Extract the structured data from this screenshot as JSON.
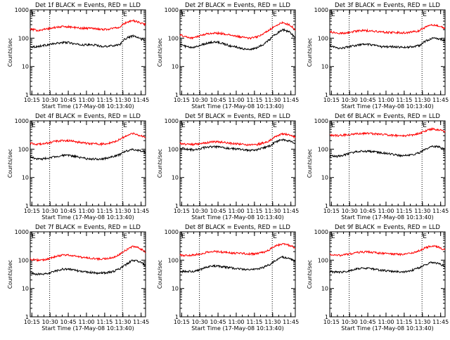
{
  "figure": {
    "xlabel": "Start Time (17-May-08 10:13:40)",
    "ylabel": "Counts/sec",
    "x_ticks": [
      "10:15",
      "10:30",
      "10:45",
      "11:00",
      "11:15",
      "11:30",
      "11:45"
    ],
    "y_ticks": [
      "1",
      "10",
      "100",
      "1000"
    ],
    "colors": {
      "events": "#000000",
      "lld": "#ff0000"
    }
  },
  "chart_data": [
    {
      "type": "line",
      "title": "Det 1f BLACK = Events, RED = LLD",
      "xlabel": "Start Time (17-May-08 10:13:40)",
      "ylabel": "Counts/sec",
      "ylim": [
        1,
        1000
      ],
      "yscale": "log",
      "x_unit": "minutes after 10:13:40",
      "series": [
        {
          "name": "Events",
          "color": "#000000",
          "values": [
            50,
            50,
            55,
            60,
            65,
            70,
            70,
            62,
            58,
            58,
            58,
            52,
            52,
            55,
            60,
            100,
            120,
            100,
            80
          ]
        },
        {
          "name": "LLD",
          "color": "#ff0000",
          "values": [
            210,
            190,
            200,
            220,
            240,
            255,
            255,
            235,
            225,
            225,
            225,
            205,
            205,
            225,
            245,
            360,
            420,
            360,
            300
          ]
        }
      ],
      "vlines": [
        {
          "x": 16,
          "label": ""
        },
        {
          "x": 76,
          "label": "E"
        }
      ],
      "corner_label": "E"
    },
    {
      "type": "line",
      "title": "Det 2f BLACK = Events, RED = LLD",
      "xlabel": "Start Time (17-May-08 10:13:40)",
      "ylabel": "Counts/sec",
      "ylim": [
        1,
        1000
      ],
      "yscale": "log",
      "x_unit": "minutes after 10:13:40",
      "series": [
        {
          "name": "Events",
          "color": "#000000",
          "values": [
            60,
            50,
            45,
            55,
            65,
            72,
            72,
            62,
            52,
            48,
            42,
            40,
            45,
            60,
            90,
            140,
            200,
            170,
            100
          ]
        },
        {
          "name": "LLD",
          "color": "#ff0000",
          "values": [
            130,
            110,
            100,
            120,
            140,
            150,
            150,
            140,
            125,
            115,
            105,
            100,
            110,
            140,
            200,
            280,
            350,
            300,
            200
          ]
        }
      ],
      "vlines": [
        {
          "x": 16,
          "label": ""
        },
        {
          "x": 76,
          "label": "E"
        }
      ],
      "corner_label": "E"
    },
    {
      "type": "line",
      "title": "Det 3f BLACK = Events, RED = LLD",
      "xlabel": "Start Time (17-May-08 10:13:40)",
      "ylabel": "Counts/sec",
      "ylim": [
        1,
        1000
      ],
      "yscale": "log",
      "x_unit": "minutes after 10:13:40",
      "series": [
        {
          "name": "Events",
          "color": "#000000",
          "values": [
            55,
            45,
            45,
            50,
            55,
            60,
            60,
            55,
            50,
            50,
            50,
            48,
            48,
            50,
            55,
            80,
            100,
            95,
            80
          ]
        },
        {
          "name": "LLD",
          "color": "#ff0000",
          "values": [
            170,
            150,
            150,
            160,
            175,
            185,
            185,
            175,
            165,
            160,
            160,
            155,
            155,
            165,
            185,
            250,
            290,
            270,
            230
          ]
        }
      ],
      "vlines": [
        {
          "x": 16,
          "label": ""
        },
        {
          "x": 76,
          "label": "E"
        }
      ],
      "corner_label": "E"
    },
    {
      "type": "line",
      "title": "Det 4f BLACK = Events, RED = LLD",
      "xlabel": "Start Time (17-May-08 10:13:40)",
      "ylabel": "Counts/sec",
      "ylim": [
        1,
        1000
      ],
      "yscale": "log",
      "x_unit": "minutes after 10:13:40",
      "series": [
        {
          "name": "Events",
          "color": "#000000",
          "values": [
            55,
            45,
            45,
            50,
            55,
            60,
            60,
            55,
            50,
            45,
            45,
            45,
            48,
            55,
            65,
            85,
            100,
            90,
            80
          ]
        },
        {
          "name": "LLD",
          "color": "#ff0000",
          "values": [
            160,
            150,
            150,
            170,
            190,
            200,
            200,
            185,
            170,
            160,
            155,
            150,
            160,
            180,
            220,
            300,
            360,
            310,
            250
          ]
        }
      ],
      "vlines": [
        {
          "x": 16,
          "label": ""
        },
        {
          "x": 76,
          "label": "E"
        }
      ],
      "corner_label": "E"
    },
    {
      "type": "line",
      "title": "Det 5f BLACK = Events, RED = LLD",
      "xlabel": "Start Time (17-May-08 10:13:40)",
      "ylabel": "Counts/sec",
      "ylim": [
        1,
        1000
      ],
      "yscale": "log",
      "x_unit": "minutes after 10:13:40",
      "series": [
        {
          "name": "Events",
          "color": "#000000",
          "values": [
            110,
            100,
            95,
            105,
            115,
            120,
            120,
            110,
            105,
            100,
            95,
            90,
            95,
            110,
            130,
            180,
            220,
            200,
            160
          ]
        },
        {
          "name": "LLD",
          "color": "#ff0000",
          "values": [
            160,
            150,
            145,
            155,
            165,
            180,
            180,
            170,
            160,
            155,
            145,
            140,
            145,
            165,
            200,
            280,
            350,
            320,
            260
          ]
        }
      ],
      "vlines": [
        {
          "x": 16,
          "label": ""
        },
        {
          "x": 76,
          "label": "E"
        }
      ],
      "corner_label": "E"
    },
    {
      "type": "line",
      "title": "Det 6f BLACK = Events, RED = LLD",
      "xlabel": "Start Time (17-May-08 10:13:40)",
      "ylabel": "Counts/sec",
      "ylim": [
        1,
        1000
      ],
      "yscale": "log",
      "x_unit": "minutes after 10:13:40",
      "series": [
        {
          "name": "Events",
          "color": "#000000",
          "values": [
            60,
            55,
            60,
            70,
            80,
            85,
            85,
            80,
            75,
            70,
            65,
            60,
            60,
            65,
            75,
            100,
            130,
            120,
            100
          ]
        },
        {
          "name": "LLD",
          "color": "#ff0000",
          "values": [
            320,
            300,
            310,
            330,
            350,
            360,
            360,
            345,
            330,
            320,
            305,
            295,
            300,
            320,
            360,
            450,
            520,
            490,
            420
          ]
        }
      ],
      "vlines": [
        {
          "x": 16,
          "label": ""
        },
        {
          "x": 76,
          "label": "E"
        }
      ],
      "corner_label": "E"
    },
    {
      "type": "line",
      "title": "Det 7f BLACK = Events, RED = LLD",
      "xlabel": "Start Time (17-May-08 10:13:40)",
      "ylabel": "Counts/sec",
      "ylim": [
        1,
        1000
      ],
      "yscale": "log",
      "x_unit": "minutes after 10:13:40",
      "series": [
        {
          "name": "Events",
          "color": "#000000",
          "values": [
            35,
            32,
            32,
            35,
            42,
            48,
            48,
            44,
            40,
            38,
            36,
            35,
            36,
            40,
            50,
            70,
            100,
            90,
            65
          ]
        },
        {
          "name": "LLD",
          "color": "#ff0000",
          "values": [
            110,
            100,
            100,
            115,
            135,
            150,
            150,
            140,
            128,
            120,
            115,
            110,
            112,
            125,
            160,
            230,
            300,
            270,
            190
          ]
        }
      ],
      "vlines": [
        {
          "x": 16,
          "label": ""
        },
        {
          "x": 76,
          "label": "E"
        }
      ],
      "corner_label": "E"
    },
    {
      "type": "line",
      "title": "Det 8f BLACK = Events, RED = LLD",
      "xlabel": "Start Time (17-May-08 10:13:40)",
      "ylabel": "Counts/sec",
      "ylim": [
        1,
        1000
      ],
      "yscale": "log",
      "x_unit": "minutes after 10:13:40",
      "series": [
        {
          "name": "Events",
          "color": "#000000",
          "values": [
            40,
            40,
            40,
            45,
            55,
            62,
            62,
            57,
            53,
            50,
            48,
            45,
            48,
            55,
            70,
            100,
            130,
            115,
            90
          ]
        },
        {
          "name": "LLD",
          "color": "#ff0000",
          "values": [
            150,
            150,
            150,
            165,
            185,
            200,
            200,
            190,
            180,
            175,
            170,
            165,
            170,
            190,
            235,
            320,
            380,
            340,
            270
          ]
        }
      ],
      "vlines": [
        {
          "x": 16,
          "label": ""
        },
        {
          "x": 76,
          "label": "E"
        }
      ],
      "corner_label": "E"
    },
    {
      "type": "line",
      "title": "Det 9f BLACK = Events, RED = LLD",
      "xlabel": "Start Time (17-May-08 10:13:40)",
      "ylabel": "Counts/sec",
      "ylim": [
        1,
        1000
      ],
      "yscale": "log",
      "x_unit": "minutes after 10:13:40",
      "series": [
        {
          "name": "Events",
          "color": "#000000",
          "values": [
            40,
            38,
            38,
            42,
            48,
            52,
            52,
            48,
            44,
            42,
            40,
            38,
            40,
            45,
            55,
            70,
            85,
            75,
            60
          ]
        },
        {
          "name": "LLD",
          "color": "#ff0000",
          "values": [
            160,
            150,
            150,
            165,
            180,
            195,
            195,
            185,
            175,
            170,
            165,
            160,
            165,
            180,
            215,
            280,
            320,
            290,
            230
          ]
        }
      ],
      "vlines": [
        {
          "x": 16,
          "label": ""
        },
        {
          "x": 76,
          "label": "E"
        }
      ],
      "corner_label": "E"
    }
  ]
}
